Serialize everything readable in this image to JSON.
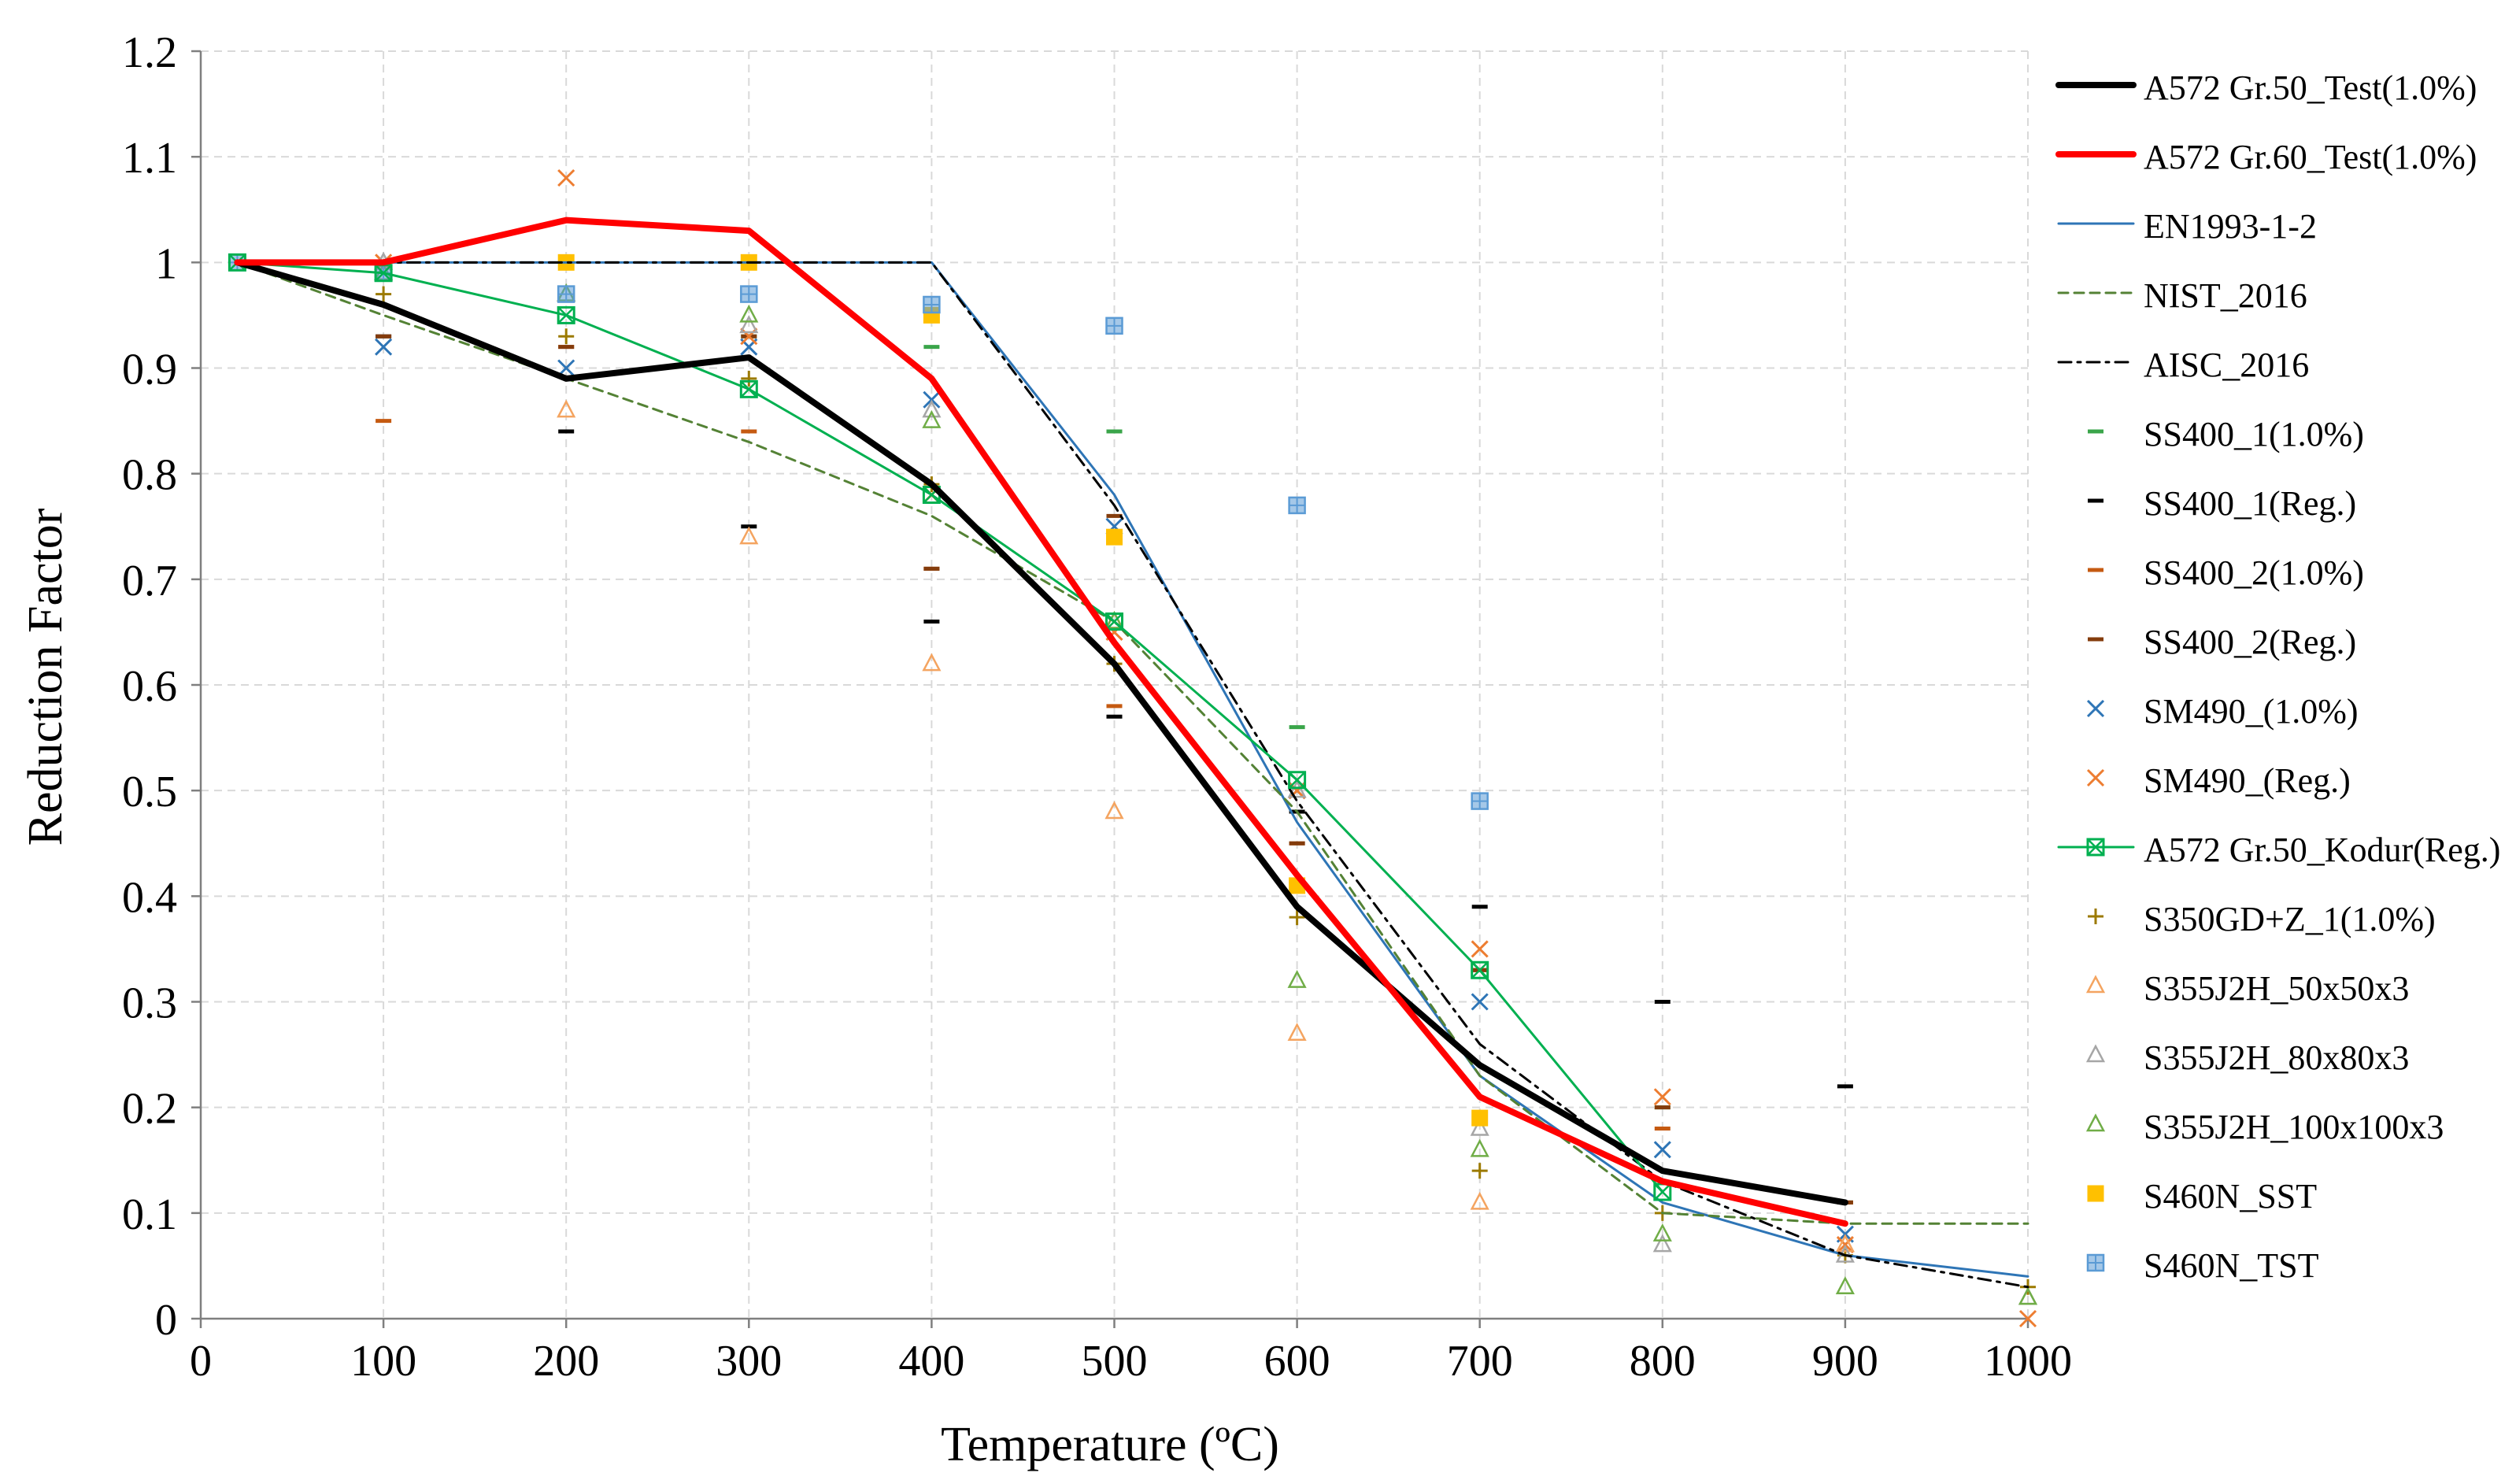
{
  "chart_data": {
    "type": "line",
    "title": "",
    "xlabel": "Temperature (ºC)",
    "ylabel": "Reduction Factor",
    "xlim": [
      0,
      1000
    ],
    "ylim": [
      0,
      1.2
    ],
    "xticks": [
      "0",
      "100",
      "200",
      "300",
      "400",
      "500",
      "600",
      "700",
      "800",
      "900",
      "1000"
    ],
    "yticks": [
      "0",
      "0.1",
      "0.2",
      "0.3",
      "0.4",
      "0.5",
      "0.6",
      "0.7",
      "0.8",
      "0.9",
      "1",
      "1.1",
      "1.2"
    ],
    "grid": true,
    "legend_position": "right",
    "series": [
      {
        "name": "A572 Gr.50_Test(1.0%)",
        "style": "line",
        "color": "#000000",
        "weight": "thick",
        "x": [
          20,
          100,
          200,
          300,
          400,
          500,
          600,
          700,
          800,
          900
        ],
        "y": [
          1.0,
          0.96,
          0.89,
          0.91,
          0.79,
          0.62,
          0.39,
          0.24,
          0.14,
          0.11
        ]
      },
      {
        "name": "A572 Gr.60_Test(1.0%)",
        "style": "line",
        "color": "#ff0000",
        "weight": "thick",
        "x": [
          20,
          100,
          200,
          300,
          400,
          500,
          600,
          700,
          800,
          900
        ],
        "y": [
          1.0,
          1.0,
          1.04,
          1.03,
          0.89,
          0.64,
          0.42,
          0.21,
          0.13,
          0.09
        ]
      },
      {
        "name": "EN1993-1-2",
        "style": "line",
        "color": "#2e75b6",
        "weight": "thin",
        "x": [
          20,
          100,
          200,
          300,
          400,
          500,
          600,
          700,
          800,
          900,
          1000
        ],
        "y": [
          1.0,
          1.0,
          1.0,
          1.0,
          1.0,
          0.78,
          0.47,
          0.23,
          0.11,
          0.06,
          0.04
        ]
      },
      {
        "name": "NIST_2016",
        "style": "dashed",
        "color": "#548235",
        "weight": "thin",
        "x": [
          20,
          100,
          200,
          300,
          400,
          500,
          600,
          700,
          800,
          900,
          1000
        ],
        "y": [
          1.0,
          0.95,
          0.89,
          0.83,
          0.76,
          0.66,
          0.48,
          0.23,
          0.1,
          0.09,
          0.09
        ]
      },
      {
        "name": "AISC_2016",
        "style": "dashdot",
        "color": "#000000",
        "weight": "thin",
        "x": [
          20,
          100,
          200,
          300,
          400,
          500,
          600,
          700,
          800,
          900,
          1000
        ],
        "y": [
          1.0,
          1.0,
          1.0,
          1.0,
          1.0,
          0.77,
          0.49,
          0.26,
          0.13,
          0.06,
          0.03
        ]
      },
      {
        "name": "SS400_1(1.0%)",
        "style": "marker",
        "marker": "dash",
        "color": "#3aa54a",
        "x": [
          100,
          200,
          300,
          400,
          500,
          600,
          700,
          800,
          900
        ],
        "y": [
          1.0,
          1.0,
          0.93,
          0.92,
          0.84,
          0.56,
          0.33,
          0.2,
          0.11
        ]
      },
      {
        "name": "SS400_1(Reg.)",
        "style": "marker",
        "marker": "dash",
        "color": "#000000",
        "x": [
          100,
          200,
          300,
          400,
          500,
          600,
          700,
          800,
          900
        ],
        "y": [
          0.93,
          0.84,
          0.75,
          0.66,
          0.57,
          0.48,
          0.39,
          0.3,
          0.22
        ]
      },
      {
        "name": "SS400_2(1.0%)",
        "style": "marker",
        "marker": "dash",
        "color": "#c55a11",
        "x": [
          100,
          200,
          300,
          400,
          500,
          600,
          700,
          800,
          900
        ],
        "y": [
          0.85,
          0.92,
          0.84,
          0.71,
          0.58,
          0.45,
          0.33,
          0.18,
          0.11
        ]
      },
      {
        "name": "SS400_2(Reg.)",
        "style": "marker",
        "marker": "dash",
        "color": "#843c0c",
        "x": [
          100,
          200,
          300,
          400,
          500,
          600,
          700,
          800,
          900
        ],
        "y": [
          0.93,
          0.92,
          0.93,
          0.71,
          0.76,
          0.45,
          0.33,
          0.2,
          0.11
        ]
      },
      {
        "name": "SM490_(1.0%)",
        "style": "marker",
        "marker": "x",
        "color": "#2e75b6",
        "x": [
          100,
          200,
          300,
          400,
          500,
          600,
          700,
          800,
          900
        ],
        "y": [
          0.92,
          0.9,
          0.92,
          0.87,
          0.75,
          0.5,
          0.3,
          0.16,
          0.08
        ]
      },
      {
        "name": "SM490_(Reg.)",
        "style": "marker",
        "marker": "x",
        "color": "#ed7d31",
        "x": [
          100,
          200,
          300,
          400,
          500,
          600,
          700,
          800,
          900,
          1000
        ],
        "y": [
          1.0,
          1.08,
          0.93,
          0.78,
          0.65,
          0.5,
          0.35,
          0.21,
          0.07,
          0.0
        ]
      },
      {
        "name": "A572 Gr.50_Kodur(Reg.)",
        "style": "line-marker",
        "marker": "square-x",
        "color": "#00b050",
        "weight": "thin",
        "x": [
          20,
          100,
          200,
          300,
          400,
          500,
          600,
          700,
          800
        ],
        "y": [
          1.0,
          0.99,
          0.95,
          0.88,
          0.78,
          0.66,
          0.51,
          0.33,
          0.12
        ]
      },
      {
        "name": "S350GD+Z_1(1.0%)",
        "style": "marker",
        "marker": "plus",
        "color": "#9c7a00",
        "x": [
          100,
          200,
          300,
          400,
          500,
          600,
          700,
          800,
          900,
          1000
        ],
        "y": [
          0.97,
          0.93,
          0.89,
          0.79,
          0.62,
          0.38,
          0.14,
          0.1,
          0.06,
          0.03
        ]
      },
      {
        "name": "S355J2H_50x50x3",
        "style": "marker",
        "marker": "triangle",
        "color": "#f4a460",
        "x": [
          200,
          300,
          400,
          500,
          600,
          700,
          900
        ],
        "y": [
          0.86,
          0.74,
          0.62,
          0.48,
          0.27,
          0.11,
          0.07
        ]
      },
      {
        "name": "S355J2H_80x80x3",
        "style": "marker",
        "marker": "triangle",
        "color": "#a6a6a6",
        "x": [
          100,
          200,
          300,
          400,
          500,
          600,
          700,
          800,
          900,
          1000
        ],
        "y": [
          1.0,
          0.97,
          0.94,
          0.86,
          0.66,
          0.5,
          0.18,
          0.07,
          0.06,
          0.02
        ]
      },
      {
        "name": "S355J2H_100x100x3",
        "style": "marker",
        "marker": "triangle",
        "color": "#70ad47",
        "x": [
          100,
          200,
          300,
          400,
          500,
          600,
          700,
          800,
          900,
          1000
        ],
        "y": [
          0.99,
          0.97,
          0.95,
          0.85,
          0.66,
          0.32,
          0.16,
          0.08,
          0.03,
          0.02
        ]
      },
      {
        "name": "S460N_SST",
        "style": "marker",
        "marker": "square",
        "color": "#ffc000",
        "x": [
          200,
          300,
          400,
          500,
          600,
          700
        ],
        "y": [
          1.0,
          1.0,
          0.95,
          0.74,
          0.41,
          0.19
        ]
      },
      {
        "name": "S460N_TST",
        "style": "marker",
        "marker": "square-grid",
        "color": "#5b9bd5",
        "x": [
          20,
          100,
          200,
          300,
          400,
          500,
          600,
          700
        ],
        "y": [
          1.0,
          0.99,
          0.97,
          0.97,
          0.96,
          0.94,
          0.77,
          0.49
        ]
      }
    ]
  }
}
